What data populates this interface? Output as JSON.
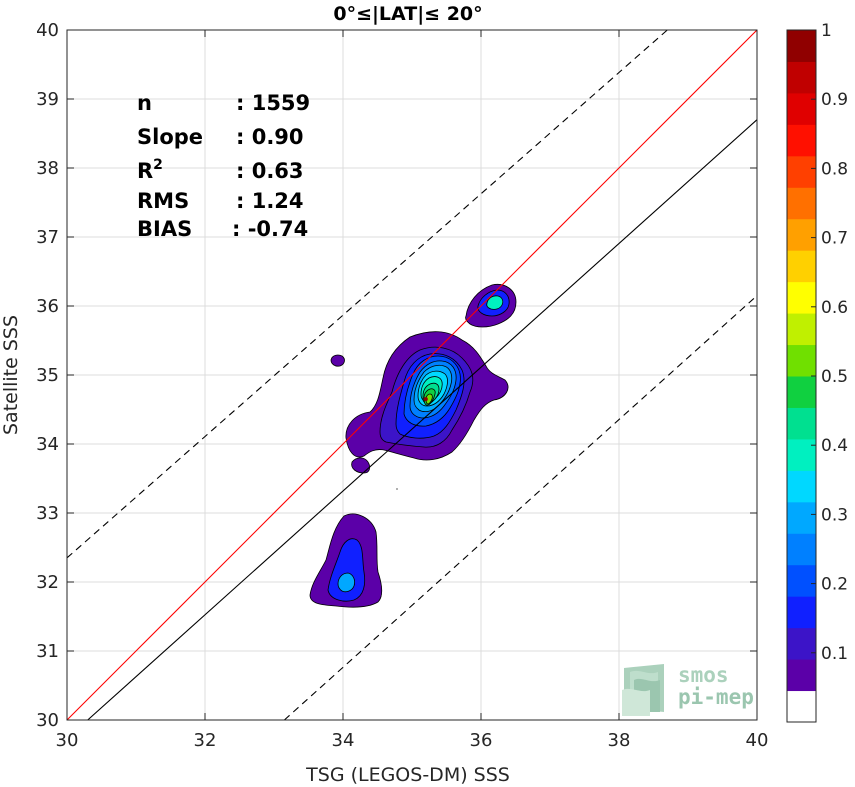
{
  "chart_data": {
    "type": "contour-density",
    "title": "0°≤|LAT|≤ 20°",
    "xlabel": "TSG (LEGOS-DM) SSS",
    "ylabel": "Satellite SSS",
    "xlim": [
      30,
      40
    ],
    "ylim": [
      30,
      40
    ],
    "xticks": [
      "30",
      "32",
      "34",
      "36",
      "38",
      "40"
    ],
    "yticks": [
      "30",
      "31",
      "32",
      "33",
      "34",
      "35",
      "36",
      "37",
      "38",
      "39",
      "40"
    ],
    "grid": true,
    "stats": [
      {
        "label": "n",
        "value": ": 1559"
      },
      {
        "label": "Slope",
        "value": ": 0.90"
      },
      {
        "label": "R",
        "sup": "2",
        "value": ": 0.63"
      },
      {
        "label": "RMS",
        "value": ": 1.24"
      },
      {
        "label": "BIAS",
        "value": ": -0.74"
      }
    ],
    "lines": [
      {
        "kind": "identity",
        "color": "#ff0000",
        "style": "solid",
        "x": [
          30,
          40
        ],
        "y": [
          30,
          40
        ]
      },
      {
        "kind": "regression",
        "color": "#000000",
        "style": "solid",
        "x": [
          30.3,
          40
        ],
        "y": [
          30,
          38.7
        ]
      },
      {
        "kind": "upper-bound",
        "color": "#000000",
        "style": "dashed",
        "x": [
          30,
          38.7
        ],
        "y": [
          32.35,
          40
        ]
      },
      {
        "kind": "lower-bound",
        "color": "#000000",
        "style": "dashed",
        "x": [
          33.15,
          40
        ],
        "y": [
          30,
          36.15
        ]
      }
    ],
    "density_peak": {
      "x": 35.2,
      "y": 34.65,
      "value": 1.0
    },
    "colorbar": {
      "range": [
        0,
        1
      ],
      "ticks": [
        "0.1",
        "0.2",
        "0.3",
        "0.4",
        "0.5",
        "0.6",
        "0.7",
        "0.8",
        "0.9",
        "1"
      ],
      "colors": [
        "#ffffff",
        "#5b00a8",
        "#3c14c8",
        "#1020ff",
        "#0050ff",
        "#0080ff",
        "#00a8ff",
        "#00d8ff",
        "#00f0c0",
        "#00e090",
        "#10d040",
        "#70e000",
        "#c0f000",
        "#ffff00",
        "#ffd000",
        "#ffa000",
        "#ff7000",
        "#ff4000",
        "#ff1000",
        "#e00000",
        "#c00000",
        "#900000"
      ]
    },
    "logo": {
      "line1": "smos",
      "line2": "pi-mep"
    }
  }
}
